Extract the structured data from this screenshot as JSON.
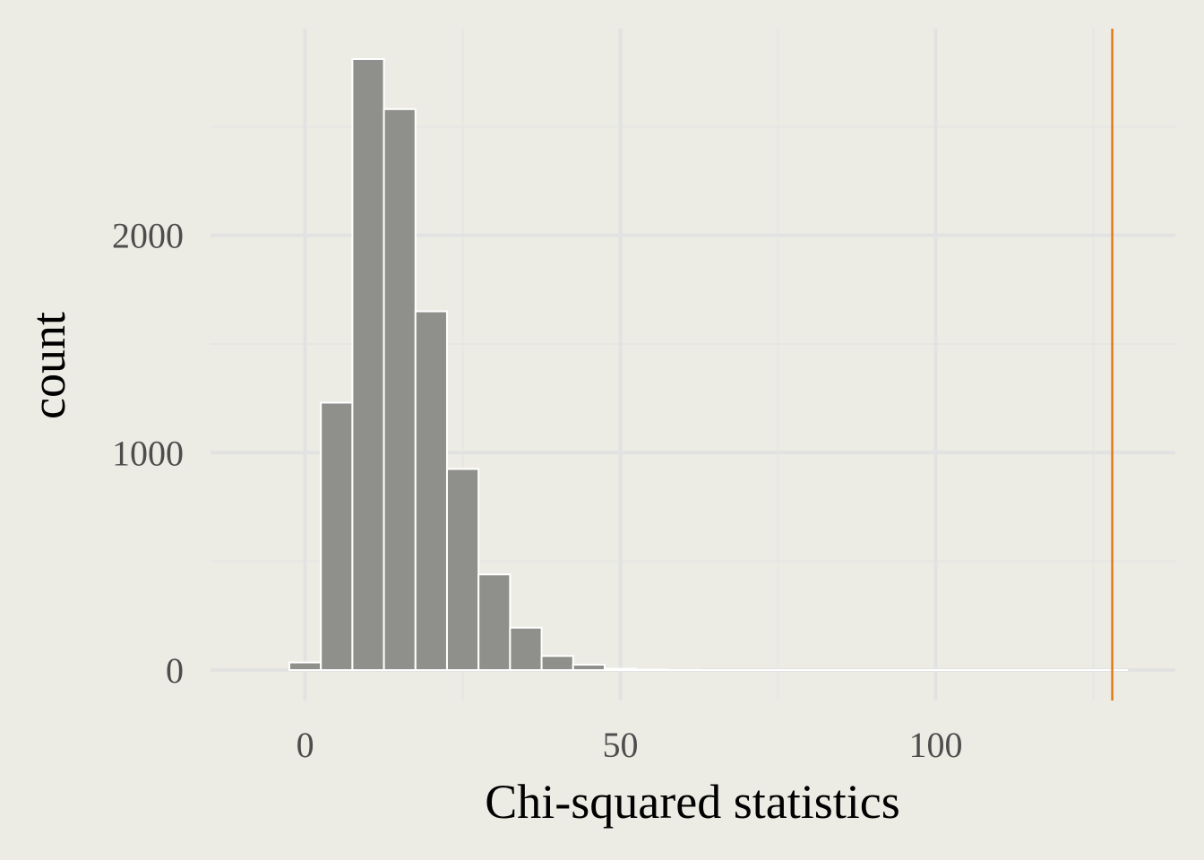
{
  "chart_data": {
    "type": "bar",
    "subtype": "histogram",
    "xlabel": "Chi-squared statistics",
    "ylabel": "count",
    "x_ticks": [
      0,
      50,
      100
    ],
    "y_ticks": [
      0,
      1000,
      2000
    ],
    "xlim": [
      -15,
      138
    ],
    "ylim": [
      -140,
      2950
    ],
    "bin_width": 5,
    "bins": [
      {
        "x": 0,
        "count": 35
      },
      {
        "x": 5,
        "count": 1230
      },
      {
        "x": 10,
        "count": 2810
      },
      {
        "x": 15,
        "count": 2580
      },
      {
        "x": 20,
        "count": 1650
      },
      {
        "x": 25,
        "count": 925
      },
      {
        "x": 30,
        "count": 440
      },
      {
        "x": 35,
        "count": 195
      },
      {
        "x": 40,
        "count": 65
      },
      {
        "x": 45,
        "count": 25
      },
      {
        "x": 50,
        "count": 6
      },
      {
        "x": 55,
        "count": 3
      },
      {
        "x": 60,
        "count": 1
      }
    ],
    "reference_line": {
      "x": 128,
      "color": "#e07b1a"
    },
    "empty_bins_to_x": 128,
    "grid": true,
    "colors": {
      "background": "#ecece4",
      "bar_fill": "#8f908b",
      "bar_outline": "#ffffff",
      "grid_major": "#e2e2e2",
      "grid_minor": "#e6e6e3"
    }
  }
}
